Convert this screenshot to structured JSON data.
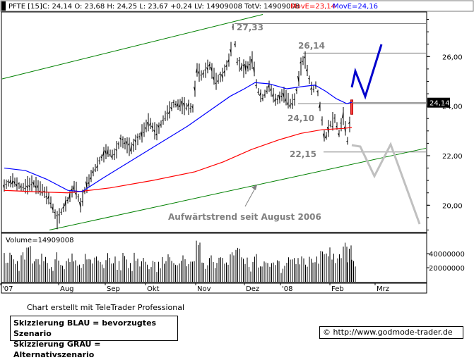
{
  "header": {
    "symbol": "PFTE [15]",
    "stats": "C: 24,14 O: 23,68 H: 24,25 L: 23,67 +0,24 LV: 14909008 TotV: 14909008",
    "ma1": "MovE=23,14",
    "ma2": "MovE=24,16",
    "ma1_color": "#ff0000",
    "ma2_color": "#0000ff"
  },
  "volume_label": "Volume=14909008",
  "footer": {
    "credit": "Chart erstellt mit TeleTrader Professional",
    "legend_line1": "Skizzierung BLAU = bevorzugtes Szenario",
    "legend_line2": "Skizzierung GRAU = Alternativszenario",
    "source": "© http://www.godmode-trader.de"
  },
  "chart_data": {
    "type": "candlestick",
    "x_tick_labels": [
      "'07",
      "Aug",
      "Sep",
      "Okt",
      "Nov",
      "Dez",
      "'08",
      "Feb",
      "Mrz"
    ],
    "y_tick_labels": [
      "20,00",
      "22,00",
      "24,00",
      "26,00"
    ],
    "ylim": [
      18.9,
      27.8
    ],
    "current_price": "24,14",
    "volume_tick_labels": [
      "40000000",
      "20000000"
    ],
    "volume_ylim": [
      0,
      55000000
    ],
    "series": [
      {
        "name": "MovE=23,14",
        "color": "#ff0000",
        "values": [
          [
            0,
            20.6
          ],
          [
            40,
            20.55
          ],
          [
            90,
            20.5
          ],
          [
            150,
            20.7
          ],
          [
            210,
            21.0
          ],
          [
            270,
            21.35
          ],
          [
            310,
            21.75
          ],
          [
            350,
            22.25
          ],
          [
            390,
            22.65
          ],
          [
            420,
            22.9
          ],
          [
            450,
            23.05
          ],
          [
            480,
            23.1
          ],
          [
            492,
            23.14
          ]
        ]
      },
      {
        "name": "MovE=24,16",
        "color": "#0000ff",
        "values": [
          [
            0,
            21.5
          ],
          [
            30,
            21.4
          ],
          [
            60,
            21.05
          ],
          [
            90,
            20.6
          ],
          [
            110,
            20.55
          ],
          [
            140,
            21.1
          ],
          [
            180,
            21.8
          ],
          [
            220,
            22.5
          ],
          [
            260,
            23.2
          ],
          [
            290,
            23.8
          ],
          [
            320,
            24.4
          ],
          [
            340,
            24.7
          ],
          [
            355,
            24.95
          ],
          [
            375,
            24.9
          ],
          [
            400,
            24.7
          ],
          [
            425,
            24.8
          ],
          [
            440,
            24.85
          ],
          [
            455,
            24.6
          ],
          [
            470,
            24.3
          ],
          [
            485,
            24.1
          ],
          [
            492,
            24.16
          ]
        ]
      }
    ],
    "price_path": [
      [
        0,
        20.8
      ],
      [
        12,
        21.0
      ],
      [
        25,
        20.7
      ],
      [
        40,
        20.9
      ],
      [
        55,
        20.6
      ],
      [
        65,
        20.2
      ],
      [
        75,
        19.4
      ],
      [
        82,
        19.8
      ],
      [
        92,
        20.3
      ],
      [
        100,
        20.8
      ],
      [
        108,
        20.0
      ],
      [
        115,
        20.7
      ],
      [
        125,
        21.3
      ],
      [
        135,
        21.8
      ],
      [
        145,
        22.2
      ],
      [
        155,
        22.0
      ],
      [
        165,
        22.6
      ],
      [
        180,
        22.3
      ],
      [
        195,
        22.9
      ],
      [
        205,
        23.4
      ],
      [
        215,
        22.9
      ],
      [
        228,
        23.6
      ],
      [
        240,
        24.1
      ],
      [
        255,
        24.0
      ],
      [
        268,
        23.9
      ],
      [
        272,
        25.5
      ],
      [
        280,
        25.2
      ],
      [
        290,
        25.7
      ],
      [
        300,
        25.0
      ],
      [
        310,
        25.3
      ],
      [
        320,
        26.0
      ],
      [
        324,
        27.2
      ],
      [
        330,
        25.8
      ],
      [
        338,
        25.5
      ],
      [
        345,
        25.6
      ],
      [
        352,
        25.9
      ],
      [
        358,
        24.7
      ],
      [
        365,
        24.3
      ],
      [
        375,
        24.8
      ],
      [
        385,
        24.2
      ],
      [
        395,
        24.5
      ],
      [
        405,
        24.1
      ],
      [
        412,
        24.3
      ],
      [
        420,
        25.6
      ],
      [
        425,
        26.0
      ],
      [
        430,
        25.3
      ],
      [
        436,
        24.6
      ],
      [
        442,
        24.9
      ],
      [
        448,
        23.8
      ],
      [
        454,
        22.6
      ],
      [
        460,
        23.2
      ],
      [
        468,
        23.5
      ],
      [
        474,
        22.9
      ],
      [
        480,
        23.6
      ],
      [
        486,
        22.6
      ],
      [
        491,
        23.7
      ],
      [
        493,
        24.14
      ]
    ],
    "volume_ticks": [
      [
        0,
        30
      ],
      [
        8,
        40
      ],
      [
        16,
        24
      ],
      [
        24,
        36
      ],
      [
        32,
        48
      ],
      [
        40,
        26
      ],
      [
        48,
        30
      ],
      [
        56,
        36
      ],
      [
        64,
        24
      ],
      [
        72,
        42
      ],
      [
        80,
        28
      ],
      [
        88,
        33
      ],
      [
        96,
        30
      ],
      [
        104,
        24
      ],
      [
        112,
        38
      ],
      [
        120,
        27
      ],
      [
        128,
        31
      ],
      [
        136,
        22
      ],
      [
        144,
        35
      ],
      [
        152,
        29
      ],
      [
        160,
        26
      ],
      [
        168,
        33
      ],
      [
        176,
        24
      ],
      [
        184,
        36
      ],
      [
        192,
        30
      ],
      [
        200,
        26
      ],
      [
        208,
        31
      ],
      [
        216,
        23
      ],
      [
        224,
        29
      ],
      [
        232,
        40
      ],
      [
        240,
        25
      ],
      [
        248,
        31
      ],
      [
        256,
        27
      ],
      [
        264,
        23
      ],
      [
        272,
        58
      ],
      [
        280,
        26
      ],
      [
        288,
        32
      ],
      [
        296,
        24
      ],
      [
        304,
        34
      ],
      [
        312,
        27
      ],
      [
        320,
        38
      ],
      [
        328,
        52
      ],
      [
        336,
        30
      ],
      [
        344,
        25
      ],
      [
        352,
        36
      ],
      [
        360,
        24
      ],
      [
        368,
        30
      ],
      [
        376,
        26
      ],
      [
        384,
        32
      ],
      [
        392,
        22
      ],
      [
        400,
        35
      ],
      [
        408,
        28
      ],
      [
        416,
        30
      ],
      [
        424,
        26
      ],
      [
        432,
        36
      ],
      [
        440,
        31
      ],
      [
        448,
        46
      ],
      [
        456,
        40
      ],
      [
        464,
        36
      ],
      [
        472,
        42
      ],
      [
        480,
        50
      ],
      [
        486,
        42
      ],
      [
        492,
        30
      ]
    ],
    "annotations": [
      {
        "text": "27,33",
        "price": 27.33
      },
      {
        "text": "26,14",
        "price": 26.14
      },
      {
        "text": "24,10",
        "price": 24.1
      },
      {
        "text": "22,15",
        "price": 22.15
      },
      {
        "text": "Aufwärtstrend seit August 2006"
      }
    ]
  }
}
